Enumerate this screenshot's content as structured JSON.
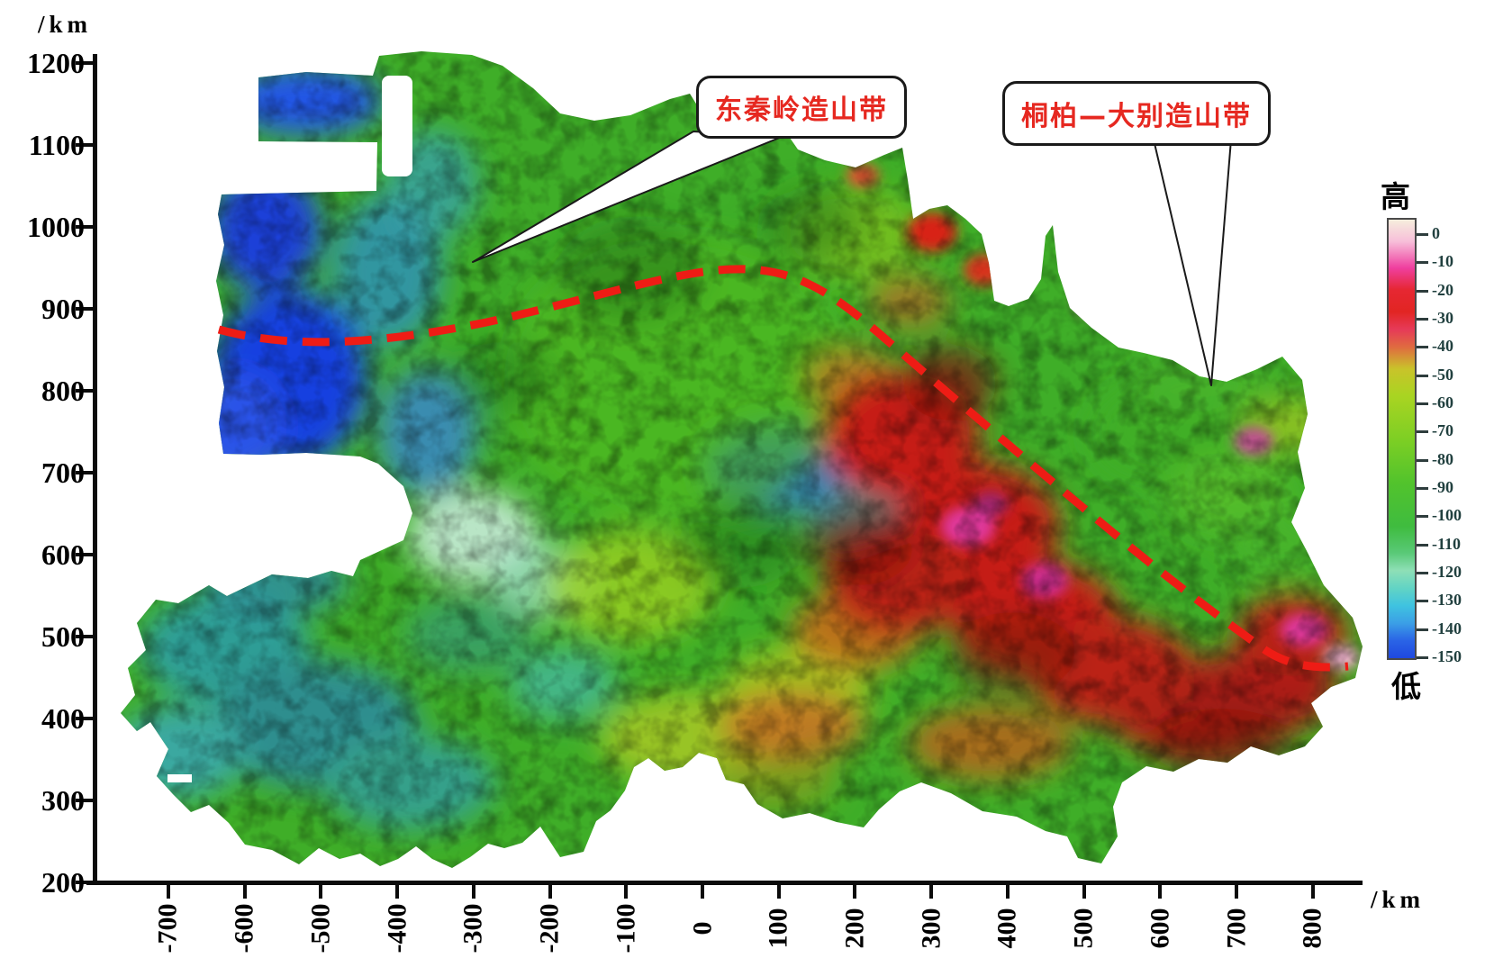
{
  "figure": {
    "y_axis": {
      "unit_label": "/km",
      "ticks": [
        "1200",
        "1100",
        "1000",
        "900",
        "800",
        "700",
        "600",
        "500",
        "400",
        "300",
        "200"
      ],
      "range_km": [
        200,
        1200
      ]
    },
    "x_axis": {
      "unit_label": "/km",
      "ticks": [
        "-700",
        "-600",
        "-500",
        "-400",
        "-300",
        "-200",
        "-100",
        "0",
        "100",
        "200",
        "300",
        "400",
        "500",
        "600",
        "700",
        "800"
      ],
      "range_km": [
        -700,
        800
      ]
    },
    "colorbar": {
      "high_label": "高",
      "low_label": "低",
      "ticks": [
        "0",
        "-10",
        "-20",
        "-30",
        "-40",
        "-50",
        "-60",
        "-70",
        "-80",
        "-90",
        "-100",
        "-110",
        "-120",
        "-130",
        "-140",
        "-150"
      ],
      "gradient_stops": [
        {
          "p": 0,
          "c": "#f6eedd"
        },
        {
          "p": 5,
          "c": "#f7bed9"
        },
        {
          "p": 11,
          "c": "#ef3f9f"
        },
        {
          "p": 16,
          "c": "#e62732"
        },
        {
          "p": 21,
          "c": "#e22523"
        },
        {
          "p": 25,
          "c": "#e63a58"
        },
        {
          "p": 29,
          "c": "#e06a40"
        },
        {
          "p": 34,
          "c": "#c9c32a"
        },
        {
          "p": 40,
          "c": "#aad422"
        },
        {
          "p": 50,
          "c": "#7ecf24"
        },
        {
          "p": 60,
          "c": "#52c32c"
        },
        {
          "p": 70,
          "c": "#3fbc3f"
        },
        {
          "p": 76,
          "c": "#59c977"
        },
        {
          "p": 80,
          "c": "#8edfb6"
        },
        {
          "p": 84,
          "c": "#62d4c4"
        },
        {
          "p": 88,
          "c": "#3fc3e0"
        },
        {
          "p": 92,
          "c": "#3b9fe6"
        },
        {
          "p": 96,
          "c": "#2a64e6"
        },
        {
          "p": 100,
          "c": "#1f48e0"
        }
      ]
    },
    "annotations": {
      "callout_east_qinling": "东秦岭造山带",
      "callout_tongbai_dabie": "桐柏—大别造山带"
    },
    "colors": {
      "dashed_line": "#ee1c15",
      "callout_text": "#e62820",
      "axis": "#0b0b0b"
    }
  },
  "chart_data": {
    "type": "heatmap",
    "title": "",
    "xlabel": "/km",
    "ylabel": "/km",
    "x_range_km": [
      -700,
      800
    ],
    "y_range_km": [
      200,
      1200
    ],
    "colorbar_scale": [
      0,
      -10,
      -20,
      -30,
      -40,
      -50,
      -60,
      -70,
      -80,
      -90,
      -100,
      -110,
      -120,
      -130,
      -140,
      -150
    ],
    "colorbar_high": "高",
    "colorbar_low": "低",
    "annotations": [
      "东秦岭造山带",
      "桐柏—大别造山带"
    ],
    "features": [
      "red dashed orogenic-belt boundary curve crossing map from west to southeast"
    ]
  }
}
